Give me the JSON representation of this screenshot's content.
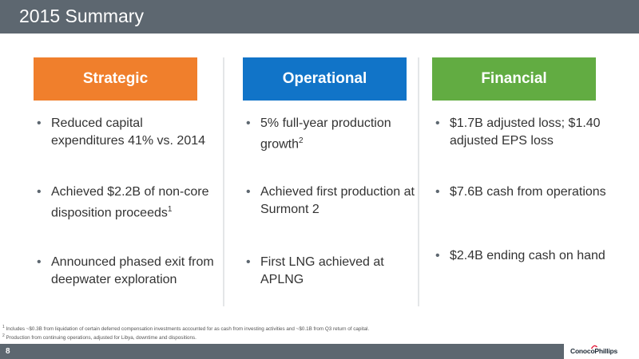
{
  "page": {
    "title": "2015 Summary",
    "page_number": "8"
  },
  "columns": [
    {
      "header": "Strategic",
      "bullets": [
        {
          "text": "Reduced capital expenditures 41% vs. 2014",
          "sup": ""
        },
        {
          "text": "Achieved $2.2B of non-core disposition proceeds",
          "sup": "1"
        },
        {
          "text": "Announced phased exit from deepwater exploration",
          "sup": ""
        }
      ]
    },
    {
      "header": "Operational",
      "bullets": [
        {
          "text": "5% full-year production growth",
          "sup": "2"
        },
        {
          "text": "Achieved first production at Surmont 2",
          "sup": ""
        },
        {
          "text": "First LNG achieved at APLNG",
          "sup": ""
        }
      ]
    },
    {
      "header": "Financial",
      "bullets": [
        {
          "text": "$1.7B adjusted loss; $1.40 adjusted EPS loss",
          "sup": ""
        },
        {
          "text": "$7.6B cash from operations",
          "sup": ""
        },
        {
          "text": "$2.4B ending cash on hand",
          "sup": ""
        }
      ]
    }
  ],
  "footnotes": [
    {
      "marker": "1",
      "text": "Includes ~$0.3B from liquidation of certain deferred compensation investments accounted for as cash from investing activities and ~$0.1B from Q3 return of capital."
    },
    {
      "marker": "2",
      "text": "Production from continuing operations, adjusted for Libya, downtime and dispositions."
    }
  ],
  "logo": {
    "text": "ConocoPhillips",
    "color": "#e31837"
  },
  "colors": {
    "title_bar": "#5d6770",
    "strategic": "#f07f2c",
    "operational": "#1174c8",
    "financial": "#62ac42"
  }
}
